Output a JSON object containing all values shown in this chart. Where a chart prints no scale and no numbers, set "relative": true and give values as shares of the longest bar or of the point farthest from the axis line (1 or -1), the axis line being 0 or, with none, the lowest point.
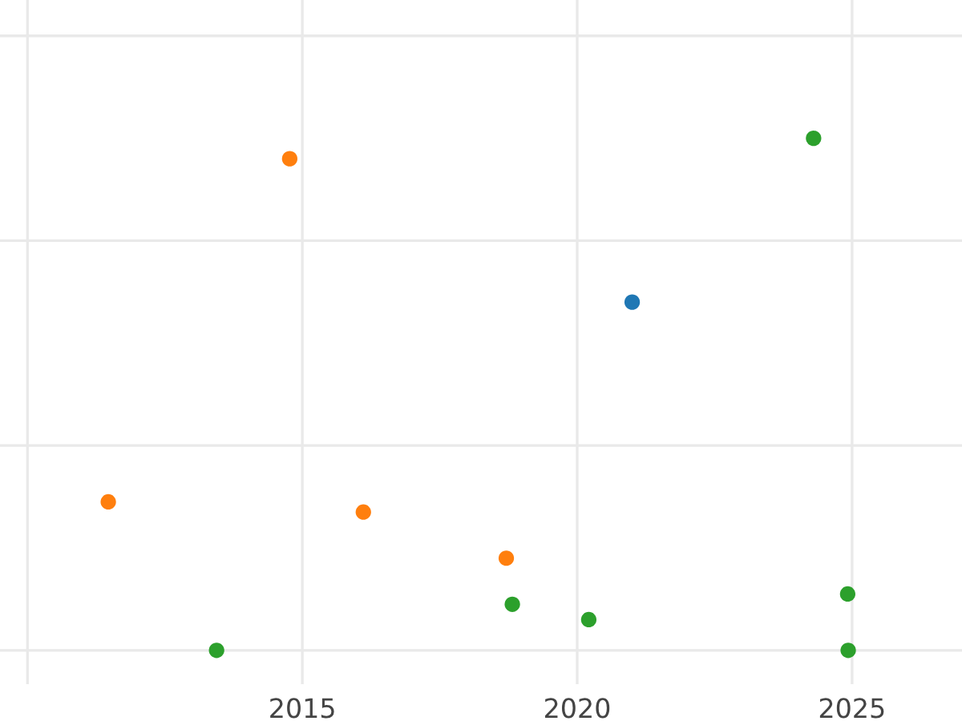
{
  "chart_data": {
    "type": "scatter",
    "relative": true,
    "xlim": [
      2009.5,
      2027.0
    ],
    "xticks": [
      {
        "value": 2010,
        "label": null
      },
      2015,
      2020,
      2025
    ],
    "grid": true,
    "tick_labels": "x",
    "marker": "circle",
    "series": [
      {
        "color": "#1f77b4",
        "x": [
          2021.0
        ],
        "values": [
          0.68
        ]
      },
      {
        "color": "#ff7f0e",
        "x": [
          2011.47,
          2014.77,
          2016.11,
          2018.71
        ],
        "values": [
          0.29,
          0.96,
          0.27,
          0.18
        ]
      },
      {
        "color": "#2ca02c",
        "x": [
          2013.44,
          2018.82,
          2020.21,
          2024.3,
          2024.92,
          2024.93
        ],
        "values": [
          0,
          0.09,
          0.06,
          1,
          0.11,
          0
        ]
      }
    ]
  }
}
